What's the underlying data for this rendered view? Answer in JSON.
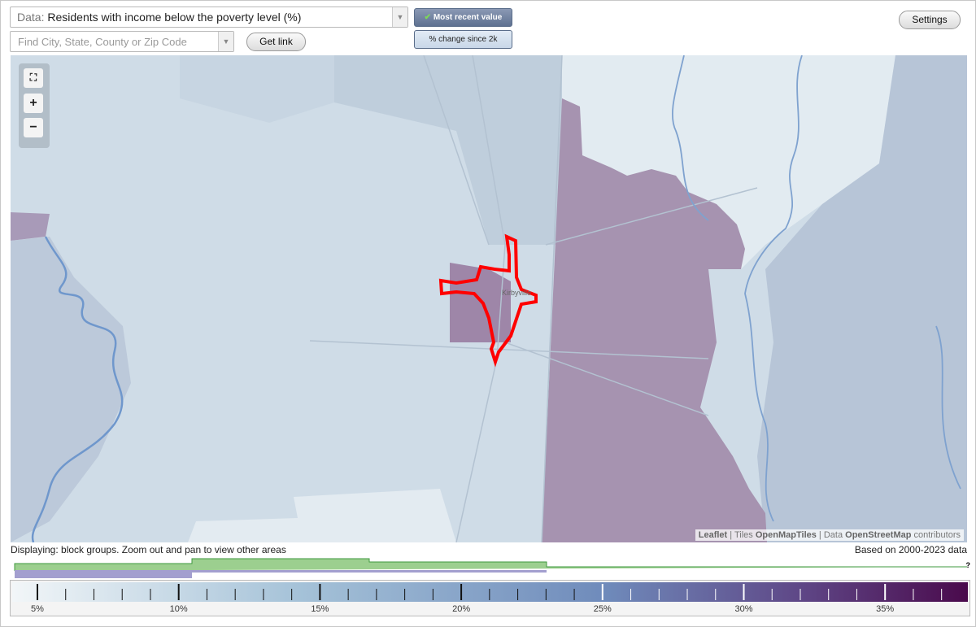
{
  "toolbar": {
    "data_prefix": "Data:",
    "data_selection": "Residents with income below the poverty level (%)",
    "search_placeholder": "Find City, State, County or Zip Code",
    "get_link": "Get link",
    "most_recent": "Most recent value",
    "percent_change": "% change since 2k",
    "settings": "Settings"
  },
  "map": {
    "zoom_in": "+",
    "zoom_out": "−",
    "place_label": "Kirbyville",
    "attribution": [
      "Leaflet",
      "|",
      "Tiles",
      "OpenMapTiles",
      "|",
      "Data",
      "OpenStreetMap",
      "contributors"
    ]
  },
  "footer": {
    "displaying": "Displaying: block groups. Zoom out and pan to view other areas",
    "based_on": "Based on 2000-2023 data",
    "help": "?"
  },
  "legend": {
    "labels": [
      "5%",
      "10%",
      "15%",
      "20%",
      "25%",
      "30%",
      "35%"
    ]
  }
}
